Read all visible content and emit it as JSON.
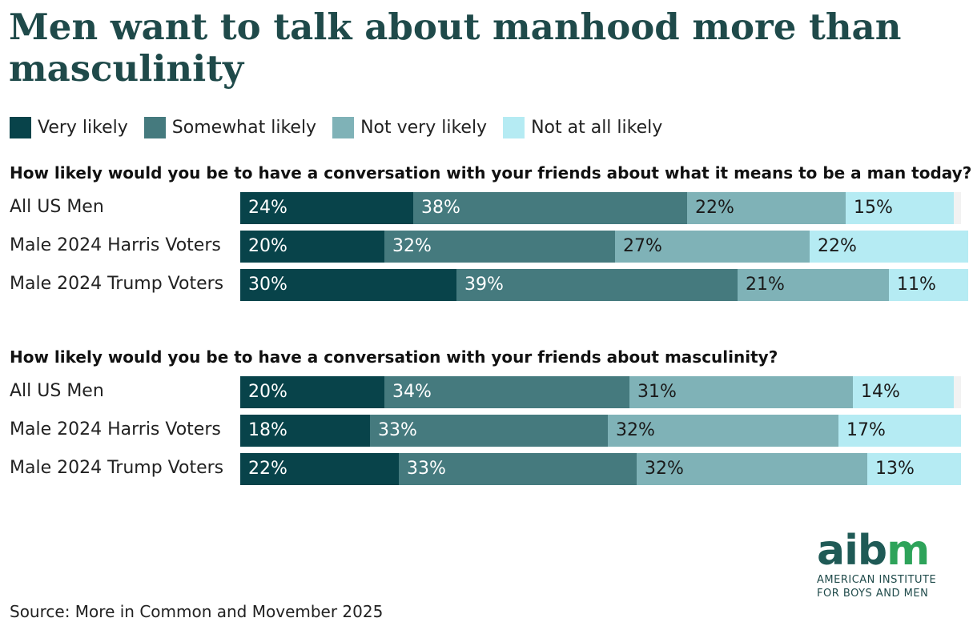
{
  "title": "Men want to talk about manhood more than masculinity",
  "legend": [
    {
      "label": "Very likely",
      "color": "#08434a"
    },
    {
      "label": "Somewhat likely",
      "color": "#457a7e"
    },
    {
      "label": "Not very likely",
      "color": "#7fb2b7"
    },
    {
      "label": "Not at all likely",
      "color": "#b5ebf3"
    }
  ],
  "chart_data": [
    {
      "type": "bar",
      "orientation": "horizontal",
      "stacked": true,
      "title": "How likely would you be to have a conversation with your friends about what it means to be a man today?",
      "categories": [
        "All US Men",
        "Male 2024 Harris Voters",
        "Male 2024 Trump Voters"
      ],
      "series": [
        {
          "name": "Very likely",
          "values": [
            24,
            20,
            30
          ]
        },
        {
          "name": "Somewhat likely",
          "values": [
            38,
            32,
            39
          ]
        },
        {
          "name": "Not very likely",
          "values": [
            22,
            27,
            21
          ]
        },
        {
          "name": "Not at all likely",
          "values": [
            15,
            22,
            11
          ]
        }
      ],
      "labels": [
        [
          "24%",
          "38%",
          "22%",
          "15%"
        ],
        [
          "20%",
          "32%",
          "27%",
          "22%"
        ],
        [
          "30%",
          "39%",
          "21%",
          "11%"
        ]
      ],
      "xlim": [
        0,
        100
      ]
    },
    {
      "type": "bar",
      "orientation": "horizontal",
      "stacked": true,
      "title": "How likely would you be to have a conversation with your friends about masculinity?",
      "categories": [
        "All US Men",
        "Male 2024 Harris Voters",
        "Male 2024 Trump Voters"
      ],
      "series": [
        {
          "name": "Very likely",
          "values": [
            20,
            18,
            22
          ]
        },
        {
          "name": "Somewhat likely",
          "values": [
            34,
            33,
            33
          ]
        },
        {
          "name": "Not very likely",
          "values": [
            31,
            32,
            32
          ]
        },
        {
          "name": "Not at all likely",
          "values": [
            14,
            17,
            13
          ]
        }
      ],
      "labels": [
        [
          "20%",
          "34%",
          "31%",
          "14%"
        ],
        [
          "18%",
          "33%",
          "32%",
          "17%"
        ],
        [
          "22%",
          "33%",
          "32%",
          "13%"
        ]
      ],
      "xlim": [
        0,
        100
      ]
    }
  ],
  "logo": {
    "mark_dark": "aib",
    "mark_accent": "m",
    "line1": "AMERICAN INSTITUTE",
    "line2": "FOR BOYS AND MEN"
  },
  "source": "Source: More in Common and Movember 2025"
}
